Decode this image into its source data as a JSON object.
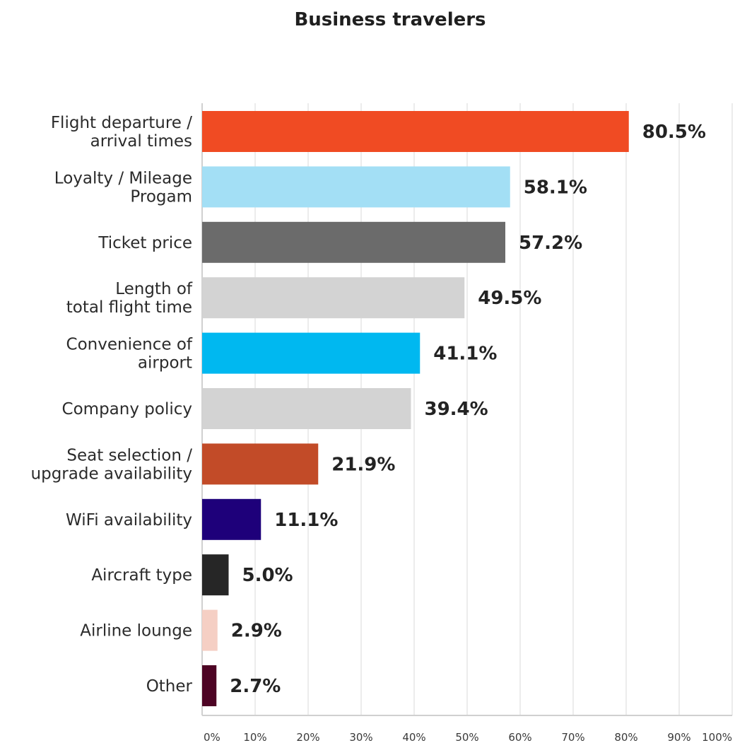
{
  "chart_data": {
    "type": "bar",
    "orientation": "horizontal",
    "title": "Business travelers",
    "categories": [
      [
        "Flight departure /",
        "arrival times"
      ],
      [
        "Loyalty / Mileage",
        "Progam"
      ],
      [
        "Ticket price"
      ],
      [
        "Length of",
        "total flight time"
      ],
      [
        "Convenience of",
        "airport"
      ],
      [
        "Company policy"
      ],
      [
        "Seat selection /",
        "upgrade availability"
      ],
      [
        "WiFi availability"
      ],
      [
        "Aircraft type"
      ],
      [
        "Airline lounge"
      ],
      [
        "Other"
      ]
    ],
    "values": [
      80.5,
      58.1,
      57.2,
      49.5,
      41.1,
      39.4,
      21.9,
      11.1,
      5.0,
      2.9,
      2.7
    ],
    "value_labels": [
      "80.5%",
      "58.1%",
      "57.2%",
      "49.5%",
      "41.1%",
      "39.4%",
      "21.9%",
      "11.1%",
      "5.0%",
      "2.9%",
      "2.7%"
    ],
    "colors": [
      "#f04b23",
      "#a3dff5",
      "#6b6b6b",
      "#d3d3d3",
      "#00b8f0",
      "#d3d3d3",
      "#c24b28",
      "#1e007a",
      "#262626",
      "#f5cfc4",
      "#4d0424"
    ],
    "xlim": [
      0,
      100
    ],
    "xticks": [
      "0%",
      "10%",
      "20%",
      "30%",
      "40%",
      "50%",
      "60%",
      "70%",
      "80%",
      "90%",
      "100%"
    ],
    "xtick_values": [
      0,
      10,
      20,
      30,
      40,
      50,
      60,
      70,
      80,
      90,
      100
    ],
    "grid": true,
    "xlabel": "",
    "ylabel": ""
  }
}
